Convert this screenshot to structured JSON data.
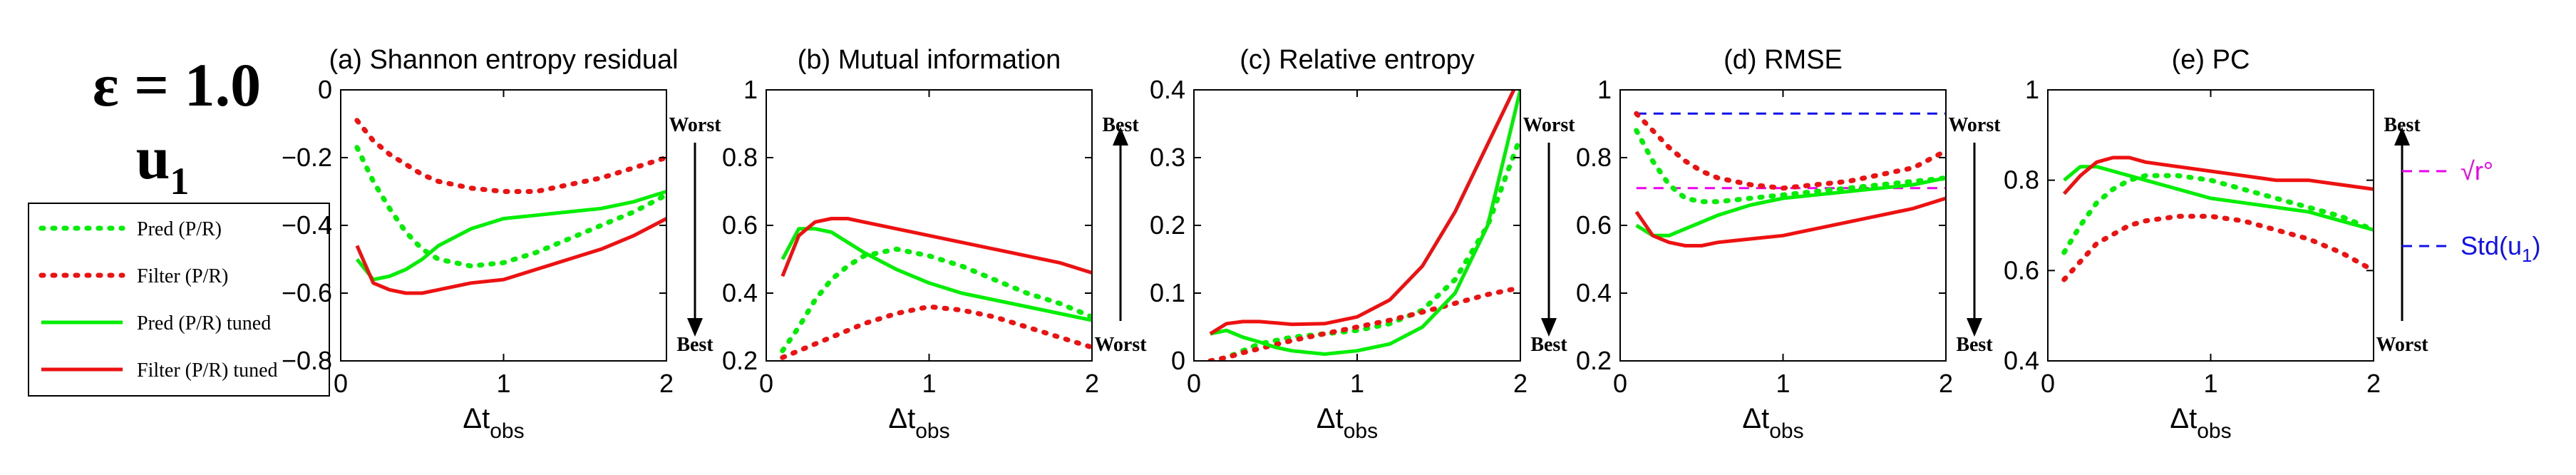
{
  "header": {
    "epsilon_label": "ε = 1.0",
    "variable_main": "u",
    "variable_sub": "1"
  },
  "legend": {
    "entries": [
      {
        "label": "Pred (P/R)",
        "color": "#00ee00",
        "style": "dotted"
      },
      {
        "label": "Filter (P/R)",
        "color": "#ee1111",
        "style": "dotted"
      },
      {
        "label": "Pred (P/R) tuned",
        "color": "#00ee00",
        "style": "solid"
      },
      {
        "label": "Filter (P/R) tuned",
        "color": "#ee1111",
        "style": "solid"
      }
    ]
  },
  "ref_legend": {
    "r_label": "√r°",
    "std_main": "Std(u",
    "std_sub": "1",
    "std_close": ")",
    "r_color": "#ee00ee",
    "std_color": "#1111ee"
  },
  "colors": {
    "green": "#00ee00",
    "red": "#ee1111"
  },
  "chart_data": [
    {
      "type": "line",
      "title": "(a) Shannon entropy residual",
      "xlabel_main": "Δt",
      "xlabel_sub": "obs",
      "xlim": [
        0,
        2
      ],
      "ylim": [
        -0.8,
        0
      ],
      "xticks": [
        0,
        1,
        2
      ],
      "xtick_labels": [
        "0",
        "1",
        "2"
      ],
      "yticks": [
        -0.8,
        -0.6,
        -0.4,
        -0.2,
        0
      ],
      "ytick_labels": [
        "−0.8",
        "−0.6",
        "−0.4",
        "−0.2",
        "0"
      ],
      "arrow": {
        "top": "Worst",
        "bottom": "Best",
        "direction": "down"
      },
      "x": [
        0.1,
        0.2,
        0.3,
        0.4,
        0.5,
        0.6,
        0.8,
        1.0,
        1.2,
        1.4,
        1.6,
        1.8,
        2.0
      ],
      "series": [
        {
          "name": "Pred (P/R)",
          "values": [
            -0.17,
            -0.27,
            -0.35,
            -0.42,
            -0.47,
            -0.5,
            -0.52,
            -0.51,
            -0.48,
            -0.44,
            -0.4,
            -0.36,
            -0.31
          ]
        },
        {
          "name": "Filter (P/R)",
          "values": [
            -0.09,
            -0.15,
            -0.19,
            -0.22,
            -0.25,
            -0.27,
            -0.29,
            -0.3,
            -0.3,
            -0.28,
            -0.26,
            -0.23,
            -0.2
          ]
        },
        {
          "name": "Pred (P/R) tuned",
          "values": [
            -0.5,
            -0.56,
            -0.55,
            -0.53,
            -0.5,
            -0.46,
            -0.41,
            -0.38,
            -0.37,
            -0.36,
            -0.35,
            -0.33,
            -0.3
          ]
        },
        {
          "name": "Filter (P/R) tuned",
          "values": [
            -0.46,
            -0.57,
            -0.59,
            -0.6,
            -0.6,
            -0.59,
            -0.57,
            -0.56,
            -0.53,
            -0.5,
            -0.47,
            -0.43,
            -0.38
          ]
        }
      ]
    },
    {
      "type": "line",
      "title": "(b) Mutual information",
      "xlabel_main": "Δt",
      "xlabel_sub": "obs",
      "xlim": [
        0,
        2
      ],
      "ylim": [
        0.2,
        1
      ],
      "xticks": [
        0,
        1,
        2
      ],
      "xtick_labels": [
        "0",
        "1",
        "2"
      ],
      "yticks": [
        0.2,
        0.4,
        0.6,
        0.8,
        1
      ],
      "ytick_labels": [
        "0.2",
        "0.4",
        "0.6",
        "0.8",
        "1"
      ],
      "arrow": {
        "top": "Best",
        "bottom": "Worst",
        "direction": "up"
      },
      "x": [
        0.1,
        0.2,
        0.3,
        0.4,
        0.5,
        0.6,
        0.8,
        1.0,
        1.2,
        1.4,
        1.6,
        1.8,
        2.0
      ],
      "series": [
        {
          "name": "Pred (P/R)",
          "values": [
            0.23,
            0.3,
            0.38,
            0.44,
            0.48,
            0.51,
            0.53,
            0.51,
            0.48,
            0.44,
            0.4,
            0.37,
            0.33
          ]
        },
        {
          "name": "Filter (P/R)",
          "values": [
            0.21,
            0.23,
            0.25,
            0.27,
            0.29,
            0.31,
            0.34,
            0.36,
            0.35,
            0.33,
            0.3,
            0.27,
            0.24
          ]
        },
        {
          "name": "Pred (P/R) tuned",
          "values": [
            0.5,
            0.59,
            0.59,
            0.58,
            0.55,
            0.52,
            0.47,
            0.43,
            0.4,
            0.38,
            0.36,
            0.34,
            0.32
          ]
        },
        {
          "name": "Filter (P/R) tuned",
          "values": [
            0.45,
            0.57,
            0.61,
            0.62,
            0.62,
            0.61,
            0.59,
            0.57,
            0.55,
            0.53,
            0.51,
            0.49,
            0.46
          ]
        }
      ]
    },
    {
      "type": "line",
      "title": "(c) Relative entropy",
      "xlabel_main": "Δt",
      "xlabel_sub": "obs",
      "xlim": [
        0,
        2
      ],
      "ylim": [
        0,
        0.4
      ],
      "xticks": [
        0,
        1,
        2
      ],
      "xtick_labels": [
        "0",
        "1",
        "2"
      ],
      "yticks": [
        0,
        0.1,
        0.2,
        0.3,
        0.4
      ],
      "ytick_labels": [
        "0",
        "0.1",
        "0.2",
        "0.3",
        "0.4"
      ],
      "arrow": {
        "top": "Worst",
        "bottom": "Best",
        "direction": "down"
      },
      "x": [
        0.1,
        0.2,
        0.3,
        0.4,
        0.5,
        0.6,
        0.8,
        1.0,
        1.2,
        1.4,
        1.6,
        1.8,
        2.0
      ],
      "series": [
        {
          "name": "Pred (P/R)",
          "values": [
            0.0,
            0.005,
            0.015,
            0.025,
            0.03,
            0.035,
            0.04,
            0.045,
            0.055,
            0.075,
            0.12,
            0.2,
            0.33
          ]
        },
        {
          "name": "Filter (P/R)",
          "values": [
            0.0,
            0.005,
            0.012,
            0.018,
            0.024,
            0.03,
            0.04,
            0.05,
            0.06,
            0.072,
            0.085,
            0.098,
            0.108
          ]
        },
        {
          "name": "Pred (P/R) tuned",
          "values": [
            0.04,
            0.045,
            0.035,
            0.028,
            0.02,
            0.015,
            0.01,
            0.015,
            0.025,
            0.05,
            0.1,
            0.2,
            0.4
          ]
        },
        {
          "name": "Filter (P/R) tuned",
          "values": [
            0.04,
            0.055,
            0.058,
            0.058,
            0.056,
            0.054,
            0.055,
            0.065,
            0.09,
            0.14,
            0.22,
            0.32,
            0.42
          ]
        }
      ]
    },
    {
      "type": "line",
      "title": "(d) RMSE",
      "xlabel_main": "Δt",
      "xlabel_sub": "obs",
      "xlim": [
        0,
        2
      ],
      "ylim": [
        0.2,
        1
      ],
      "xticks": [
        0,
        1,
        2
      ],
      "xtick_labels": [
        "0",
        "1",
        "2"
      ],
      "yticks": [
        0.2,
        0.4,
        0.6,
        0.8,
        1
      ],
      "ytick_labels": [
        "0.2",
        "0.4",
        "0.6",
        "0.8",
        "1"
      ],
      "arrow": {
        "top": "Worst",
        "bottom": "Best",
        "direction": "down"
      },
      "ref_lines": [
        {
          "name": "Std(u1)",
          "y": 0.93,
          "color": "#1111ee"
        },
        {
          "name": "sqrt(r_o)",
          "y": 0.71,
          "color": "#ee00ee"
        }
      ],
      "x": [
        0.1,
        0.2,
        0.3,
        0.4,
        0.5,
        0.6,
        0.8,
        1.0,
        1.2,
        1.4,
        1.6,
        1.8,
        2.0
      ],
      "series": [
        {
          "name": "Pred (P/R)",
          "values": [
            0.88,
            0.79,
            0.72,
            0.68,
            0.67,
            0.67,
            0.68,
            0.69,
            0.7,
            0.71,
            0.72,
            0.73,
            0.74
          ]
        },
        {
          "name": "Filter (P/R)",
          "values": [
            0.93,
            0.88,
            0.83,
            0.79,
            0.76,
            0.74,
            0.72,
            0.71,
            0.72,
            0.73,
            0.75,
            0.77,
            0.82
          ]
        },
        {
          "name": "Pred (P/R) tuned",
          "values": [
            0.6,
            0.57,
            0.57,
            0.59,
            0.61,
            0.63,
            0.66,
            0.68,
            0.69,
            0.7,
            0.71,
            0.72,
            0.74
          ]
        },
        {
          "name": "Filter (P/R) tuned",
          "values": [
            0.64,
            0.57,
            0.55,
            0.54,
            0.54,
            0.55,
            0.56,
            0.57,
            0.59,
            0.61,
            0.63,
            0.65,
            0.68
          ]
        }
      ]
    },
    {
      "type": "line",
      "title": "(e) PC",
      "xlabel_main": "Δt",
      "xlabel_sub": "obs",
      "xlim": [
        0,
        2
      ],
      "ylim": [
        0.4,
        1
      ],
      "xticks": [
        0,
        1,
        2
      ],
      "xtick_labels": [
        "0",
        "1",
        "2"
      ],
      "yticks": [
        0.4,
        0.6,
        0.8,
        1
      ],
      "ytick_labels": [
        "0.4",
        "0.6",
        "0.8",
        "1"
      ],
      "arrow": {
        "top": "Best",
        "bottom": "Worst",
        "direction": "up"
      },
      "x": [
        0.1,
        0.2,
        0.3,
        0.4,
        0.5,
        0.6,
        0.8,
        1.0,
        1.2,
        1.4,
        1.6,
        1.8,
        2.0
      ],
      "series": [
        {
          "name": "Pred (P/R)",
          "values": [
            0.64,
            0.7,
            0.75,
            0.78,
            0.8,
            0.81,
            0.81,
            0.8,
            0.78,
            0.76,
            0.74,
            0.72,
            0.69
          ]
        },
        {
          "name": "Filter (P/R)",
          "values": [
            0.58,
            0.62,
            0.66,
            0.68,
            0.7,
            0.71,
            0.72,
            0.72,
            0.71,
            0.69,
            0.67,
            0.64,
            0.6
          ]
        },
        {
          "name": "Pred (P/R) tuned",
          "values": [
            0.8,
            0.83,
            0.83,
            0.82,
            0.81,
            0.8,
            0.78,
            0.76,
            0.75,
            0.74,
            0.73,
            0.71,
            0.69
          ]
        },
        {
          "name": "Filter (P/R) tuned",
          "values": [
            0.77,
            0.81,
            0.84,
            0.85,
            0.85,
            0.84,
            0.83,
            0.82,
            0.81,
            0.8,
            0.8,
            0.79,
            0.78
          ]
        }
      ]
    }
  ]
}
